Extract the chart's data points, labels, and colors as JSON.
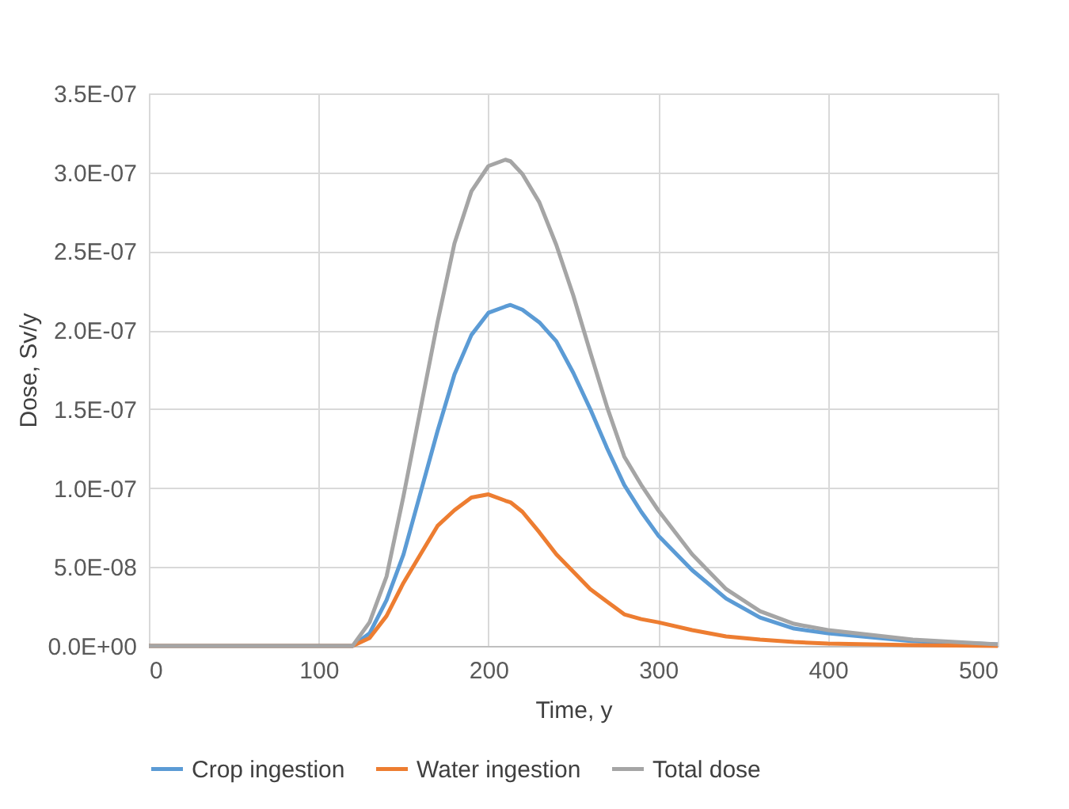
{
  "chart_data": {
    "type": "line",
    "xlabel": "Time, y",
    "ylabel": "Dose, Sv/y",
    "x": [
      0,
      100,
      120,
      130,
      140,
      150,
      160,
      170,
      180,
      190,
      200,
      210,
      213,
      220,
      230,
      240,
      250,
      260,
      270,
      280,
      290,
      300,
      320,
      340,
      360,
      380,
      400,
      450,
      500
    ],
    "series": [
      {
        "name": "Crop ingestion",
        "color": "#5b9bd5",
        "values": [
          0,
          0,
          0,
          8e-09,
          2.9e-08,
          5.8e-08,
          9.7e-08,
          1.36e-07,
          1.72e-07,
          1.97e-07,
          2.11e-07,
          2.15e-07,
          2.16e-07,
          2.13e-07,
          2.05e-07,
          1.93e-07,
          1.73e-07,
          1.5e-07,
          1.25e-07,
          1.02e-07,
          8.5e-08,
          7e-08,
          4.8e-08,
          3e-08,
          1.8e-08,
          1.1e-08,
          8e-09,
          3e-09,
          1e-09
        ]
      },
      {
        "name": "Water ingestion",
        "color": "#ed7d31",
        "values": [
          0,
          0,
          0,
          5e-09,
          1.9e-08,
          4e-08,
          5.8e-08,
          7.6e-08,
          8.6e-08,
          9.4e-08,
          9.6e-08,
          9.2e-08,
          9.1e-08,
          8.5e-08,
          7.2e-08,
          5.8e-08,
          4.7e-08,
          3.6e-08,
          2.8e-08,
          2e-08,
          1.7e-08,
          1.5e-08,
          1e-08,
          6e-09,
          4e-09,
          2.5e-09,
          1.5e-09,
          5e-10,
          0
        ]
      },
      {
        "name": "Total dose",
        "color": "#a5a5a5",
        "values": [
          0,
          0,
          0,
          1.5e-08,
          4.4e-08,
          9.5e-08,
          1.5e-07,
          2.05e-07,
          2.55e-07,
          2.88e-07,
          3.04e-07,
          3.08e-07,
          3.07e-07,
          2.99e-07,
          2.81e-07,
          2.54e-07,
          2.22e-07,
          1.86e-07,
          1.51e-07,
          1.2e-07,
          1.02e-07,
          8.6e-08,
          5.8e-08,
          3.6e-08,
          2.2e-08,
          1.4e-08,
          1e-08,
          4e-09,
          1e-09
        ]
      }
    ],
    "xlim": [
      0,
      500
    ],
    "xticks": [
      0,
      100,
      200,
      300,
      400,
      500
    ],
    "ylim": [
      0,
      3.5e-07
    ],
    "yticks": [
      {
        "value": 0,
        "label": "0.0E+00"
      },
      {
        "value": 5e-08,
        "label": "5.0E-08"
      },
      {
        "value": 1e-07,
        "label": "1.0E-07"
      },
      {
        "value": 1.5e-07,
        "label": "1.5E-07"
      },
      {
        "value": 2e-07,
        "label": "2.0E-07"
      },
      {
        "value": 2.5e-07,
        "label": "2.5E-07"
      },
      {
        "value": 3e-07,
        "label": "3.0E-07"
      },
      {
        "value": 3.5e-07,
        "label": "3.5E-07"
      }
    ],
    "grid": true,
    "legend": "bottom",
    "marker": "none",
    "line_style": "solid"
  }
}
